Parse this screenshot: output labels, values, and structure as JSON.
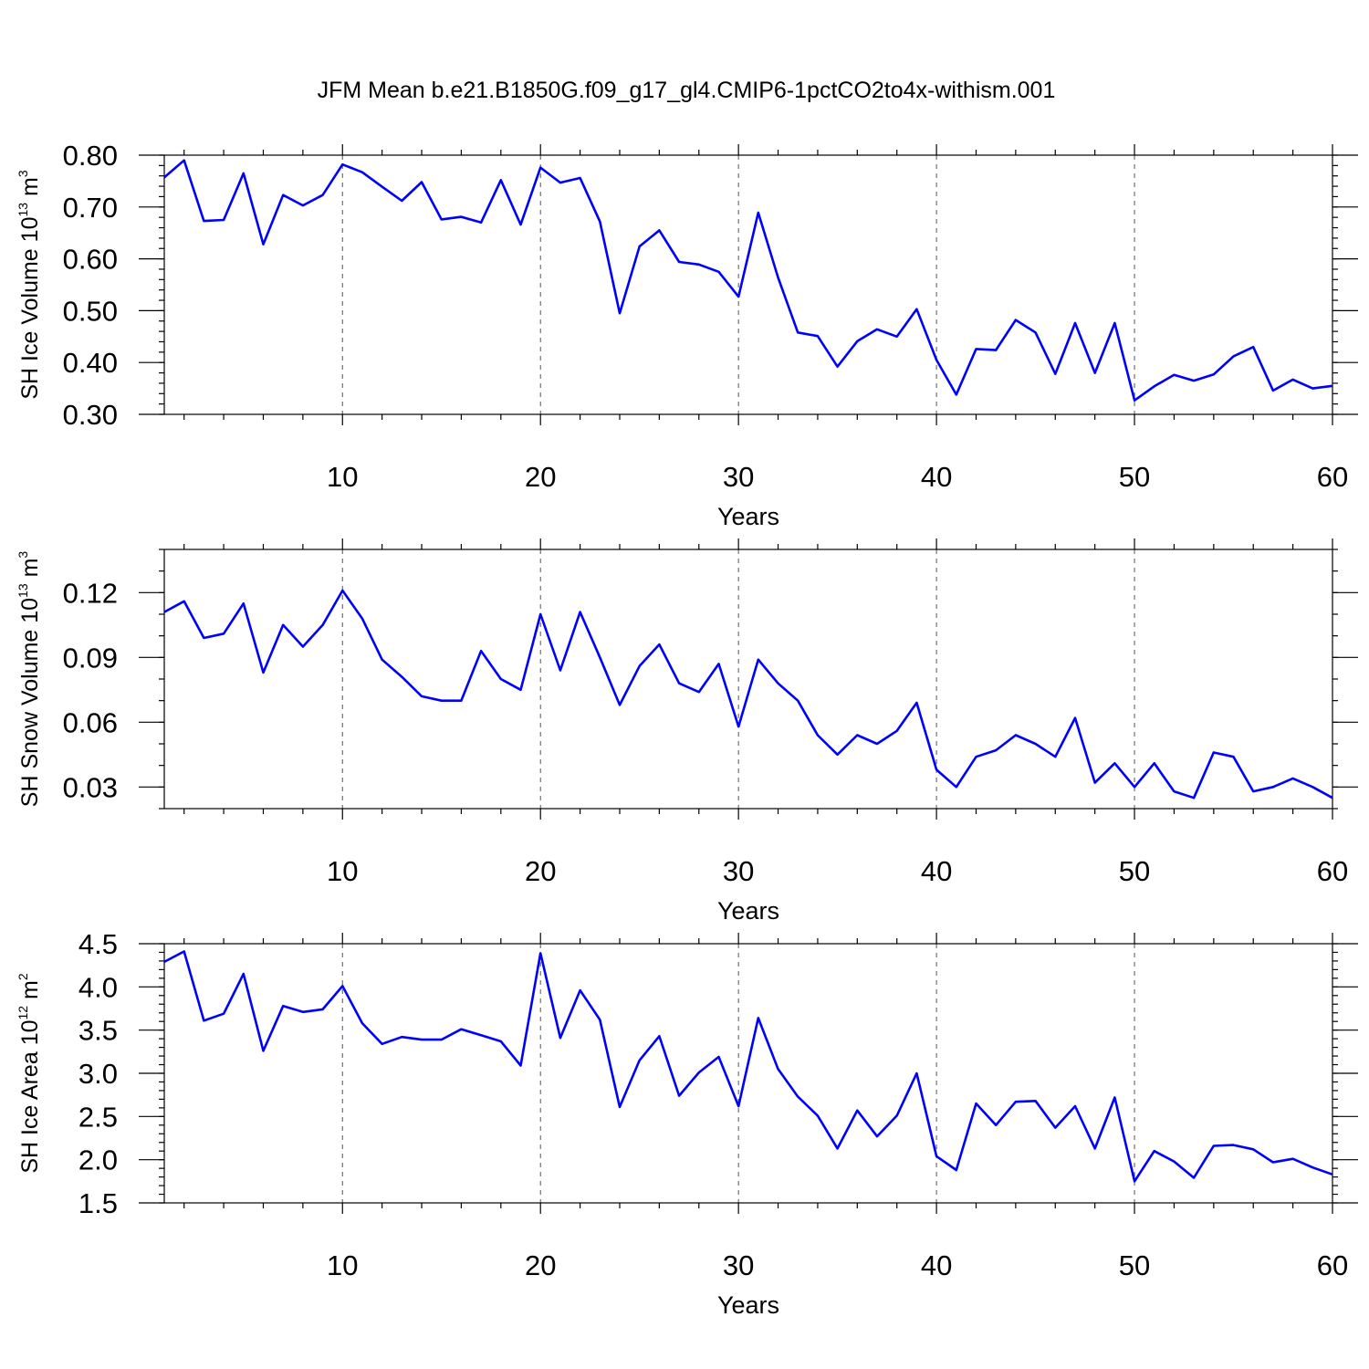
{
  "title": "JFM Mean b.e21.B1850G.f09_g17_gl4.CMIP6-1pctCO2to4x-withism.001",
  "colors": {
    "series": "#0000ff",
    "grid": "#555555"
  },
  "chart_data": [
    {
      "type": "line",
      "xlabel": "Years",
      "ylabel": {
        "text": "SH Ice Volume 10",
        "exp": "13",
        "unit": " m",
        "unit_exp": "3"
      },
      "xlim": [
        1,
        60
      ],
      "ylim": [
        0.3,
        0.8
      ],
      "xticks": [
        10,
        20,
        30,
        40,
        50,
        60
      ],
      "yticks": [
        0.3,
        0.4,
        0.5,
        0.6,
        0.7,
        0.8
      ],
      "yticklabels": [
        "0.30",
        "0.40",
        "0.50",
        "0.60",
        "0.70",
        "0.80"
      ],
      "yminor_step": 0.02,
      "grid": "vertical-dashed",
      "x": [
        1,
        2,
        3,
        4,
        5,
        6,
        7,
        8,
        9,
        10,
        11,
        12,
        13,
        14,
        15,
        16,
        17,
        18,
        19,
        20,
        21,
        22,
        23,
        24,
        25,
        26,
        27,
        28,
        29,
        30,
        31,
        32,
        33,
        34,
        35,
        36,
        37,
        38,
        39,
        40,
        41,
        42,
        43,
        44,
        45,
        46,
        47,
        48,
        49,
        50,
        51,
        52,
        53,
        54,
        55,
        56,
        57,
        58,
        59,
        60
      ],
      "values": [
        0.757,
        0.79,
        0.673,
        0.675,
        0.765,
        0.628,
        0.723,
        0.703,
        0.723,
        0.782,
        0.767,
        0.739,
        0.712,
        0.748,
        0.676,
        0.681,
        0.67,
        0.752,
        0.666,
        0.776,
        0.747,
        0.756,
        0.672,
        0.495,
        0.624,
        0.655,
        0.594,
        0.589,
        0.575,
        0.527,
        0.689,
        0.564,
        0.458,
        0.451,
        0.392,
        0.441,
        0.464,
        0.45,
        0.503,
        0.405,
        0.338,
        0.426,
        0.424,
        0.482,
        0.458,
        0.378,
        0.476,
        0.38,
        0.476,
        0.327,
        0.354,
        0.376,
        0.365,
        0.377,
        0.412,
        0.43,
        0.346,
        0.367,
        0.35,
        0.355
      ]
    },
    {
      "type": "line",
      "xlabel": "Years",
      "ylabel": {
        "text": "SH Snow Volume 10",
        "exp": "13",
        "unit": " m",
        "unit_exp": "3"
      },
      "xlim": [
        1,
        60
      ],
      "ylim": [
        0.02,
        0.14
      ],
      "xticks": [
        10,
        20,
        30,
        40,
        50,
        60
      ],
      "yticks": [
        0.03,
        0.06,
        0.09,
        0.12
      ],
      "yticklabels": [
        "0.03",
        "0.06",
        "0.09",
        "0.12"
      ],
      "yminor_step": 0.01,
      "grid": "vertical-dashed",
      "x": [
        1,
        2,
        3,
        4,
        5,
        6,
        7,
        8,
        9,
        10,
        11,
        12,
        13,
        14,
        15,
        16,
        17,
        18,
        19,
        20,
        21,
        22,
        23,
        24,
        25,
        26,
        27,
        28,
        29,
        30,
        31,
        32,
        33,
        34,
        35,
        36,
        37,
        38,
        39,
        40,
        41,
        42,
        43,
        44,
        45,
        46,
        47,
        48,
        49,
        50,
        51,
        52,
        53,
        54,
        55,
        56,
        57,
        58,
        59,
        60
      ],
      "values": [
        0.111,
        0.116,
        0.099,
        0.101,
        0.115,
        0.083,
        0.105,
        0.095,
        0.105,
        0.121,
        0.108,
        0.089,
        0.081,
        0.072,
        0.07,
        0.07,
        0.093,
        0.08,
        0.075,
        0.11,
        0.084,
        0.111,
        0.09,
        0.068,
        0.086,
        0.096,
        0.078,
        0.074,
        0.087,
        0.058,
        0.089,
        0.078,
        0.07,
        0.054,
        0.045,
        0.054,
        0.05,
        0.056,
        0.069,
        0.038,
        0.03,
        0.044,
        0.047,
        0.054,
        0.05,
        0.044,
        0.062,
        0.032,
        0.041,
        0.03,
        0.041,
        0.028,
        0.025,
        0.046,
        0.044,
        0.028,
        0.03,
        0.034,
        0.03,
        0.025
      ]
    },
    {
      "type": "line",
      "xlabel": "Years",
      "ylabel": {
        "text": "SH Ice Area 10",
        "exp": "12",
        "unit": " m",
        "unit_exp": "2"
      },
      "xlim": [
        1,
        60
      ],
      "ylim": [
        1.5,
        4.5
      ],
      "xticks": [
        10,
        20,
        30,
        40,
        50,
        60
      ],
      "yticks": [
        1.5,
        2.0,
        2.5,
        3.0,
        3.5,
        4.0,
        4.5
      ],
      "yticklabels": [
        "1.5",
        "2.0",
        "2.5",
        "3.0",
        "3.5",
        "4.0",
        "4.5"
      ],
      "yminor_step": 0.1,
      "grid": "vertical-dashed",
      "x": [
        1,
        2,
        3,
        4,
        5,
        6,
        7,
        8,
        9,
        10,
        11,
        12,
        13,
        14,
        15,
        16,
        17,
        18,
        19,
        20,
        21,
        22,
        23,
        24,
        25,
        26,
        27,
        28,
        29,
        30,
        31,
        32,
        33,
        34,
        35,
        36,
        37,
        38,
        39,
        40,
        41,
        42,
        43,
        44,
        45,
        46,
        47,
        48,
        49,
        50,
        51,
        52,
        53,
        54,
        55,
        56,
        57,
        58,
        59,
        60
      ],
      "values": [
        4.29,
        4.41,
        3.61,
        3.69,
        4.15,
        3.26,
        3.78,
        3.71,
        3.74,
        4.01,
        3.58,
        3.34,
        3.42,
        3.39,
        3.39,
        3.51,
        3.44,
        3.37,
        3.09,
        4.39,
        3.41,
        3.96,
        3.62,
        2.61,
        3.15,
        3.43,
        2.74,
        3.01,
        3.19,
        2.62,
        3.64,
        3.05,
        2.73,
        2.51,
        2.13,
        2.57,
        2.27,
        2.51,
        3.0,
        2.04,
        1.88,
        2.65,
        2.4,
        2.67,
        2.68,
        2.37,
        2.62,
        2.13,
        2.72,
        1.75,
        2.1,
        1.98,
        1.79,
        2.16,
        2.17,
        2.12,
        1.97,
        2.01,
        1.91,
        1.83
      ]
    }
  ]
}
